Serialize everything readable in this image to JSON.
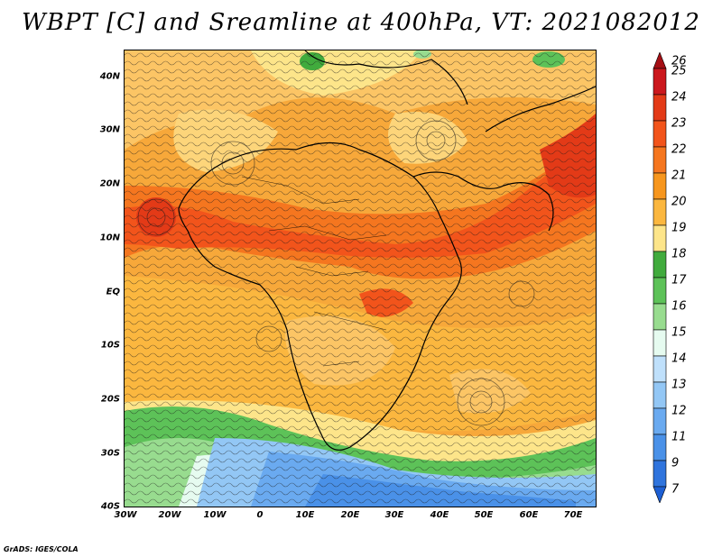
{
  "title": "WBPT [C] and Sreamline at 400hPa, VT: 2021082012",
  "credit": "GrADS: IGES/COLA",
  "map": {
    "lat_labels": [
      "40N",
      "30N",
      "20N",
      "10N",
      "EQ",
      "10S",
      "20S",
      "30S",
      "40S"
    ],
    "lon_labels": [
      "30W",
      "20W",
      "10W",
      "0",
      "10E",
      "20E",
      "30E",
      "40E",
      "50E",
      "60E",
      "70E"
    ],
    "lat_range": [
      -40,
      45
    ],
    "lon_range": [
      -30,
      75
    ]
  },
  "colorbar": {
    "labels": [
      "26",
      "25",
      "24",
      "23",
      "22",
      "21",
      "20",
      "19",
      "18",
      "17",
      "16",
      "15",
      "14",
      "13",
      "12",
      "11",
      "9",
      "7"
    ],
    "colors": [
      "#a50f15",
      "#cb181d",
      "#e33a17",
      "#f2541b",
      "#f5761f",
      "#f7961d",
      "#fbb73f",
      "#fde58a",
      "#41ab3d",
      "#5dc258",
      "#98dc8f",
      "#e6fbf0",
      "#bfe0fb",
      "#93c7f5",
      "#6aaaf0",
      "#4a91e8",
      "#2f74dd",
      "#1d5fd3"
    ]
  }
}
